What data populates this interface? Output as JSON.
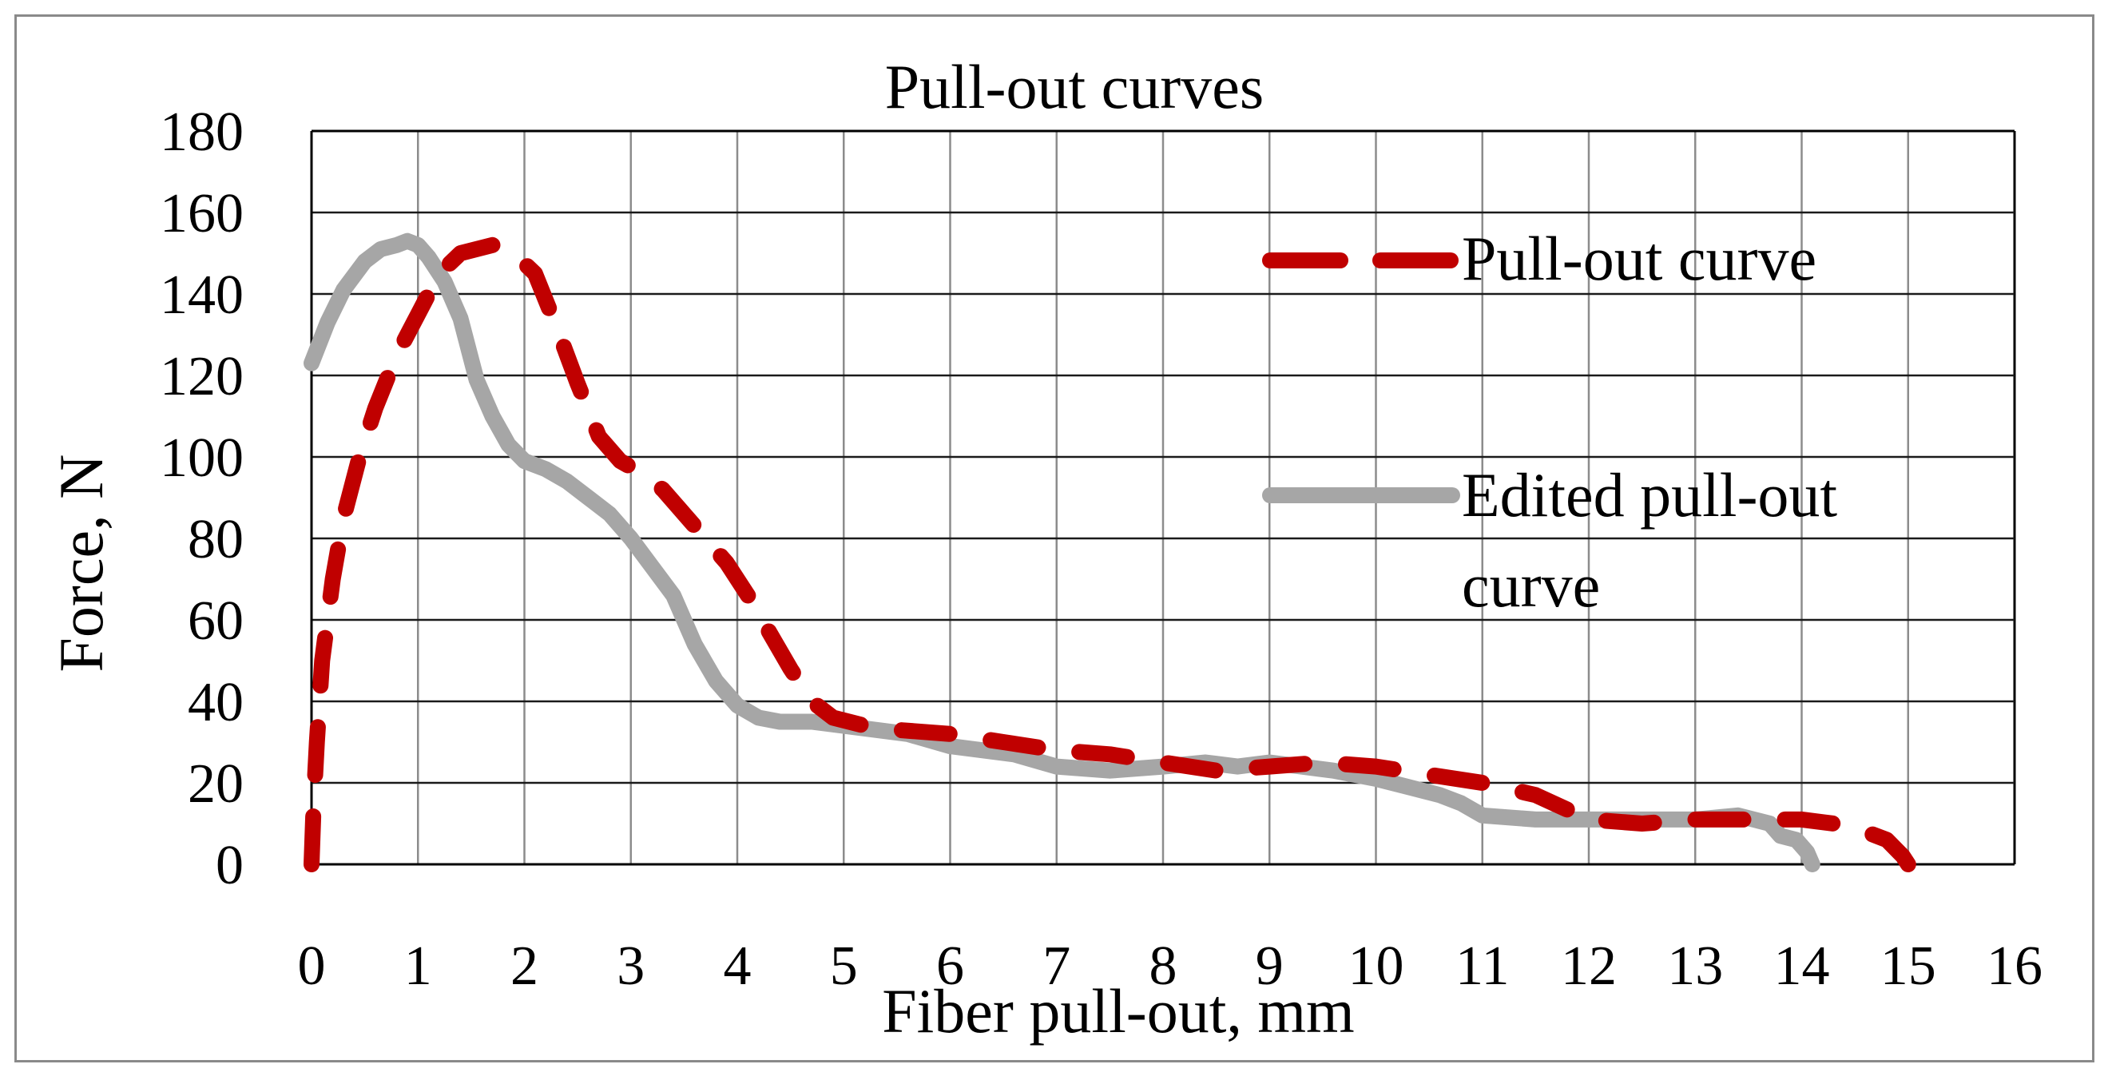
{
  "chart_data": {
    "type": "line",
    "title": "Pull-out curves",
    "xlabel": "Fiber pull-out, mm",
    "ylabel": "Force, N",
    "xlim": [
      0,
      16
    ],
    "ylim": [
      0,
      180
    ],
    "x_ticks": [
      0,
      1,
      2,
      3,
      4,
      5,
      6,
      7,
      8,
      9,
      10,
      11,
      12,
      13,
      14,
      15,
      16
    ],
    "y_ticks": [
      0,
      20,
      40,
      60,
      80,
      100,
      120,
      140,
      160,
      180
    ],
    "grid": true,
    "legend_position": "top-right",
    "series": [
      {
        "name": "Pull-out curve",
        "style": "dashed",
        "color": "#c00000",
        "points": [
          [
            0,
            0
          ],
          [
            0.02,
            15
          ],
          [
            0.05,
            30
          ],
          [
            0.1,
            50
          ],
          [
            0.2,
            70
          ],
          [
            0.3,
            85
          ],
          [
            0.45,
            100
          ],
          [
            0.6,
            112
          ],
          [
            0.8,
            125
          ],
          [
            1.0,
            135
          ],
          [
            1.2,
            145
          ],
          [
            1.4,
            150
          ],
          [
            1.7,
            152
          ],
          [
            1.9,
            150
          ],
          [
            2.1,
            145
          ],
          [
            2.3,
            132
          ],
          [
            2.5,
            118
          ],
          [
            2.7,
            105
          ],
          [
            2.9,
            99
          ],
          [
            3.1,
            96
          ],
          [
            3.3,
            92
          ],
          [
            3.5,
            86
          ],
          [
            3.7,
            80
          ],
          [
            3.9,
            74
          ],
          [
            4.1,
            66
          ],
          [
            4.3,
            57
          ],
          [
            4.5,
            48
          ],
          [
            4.7,
            40
          ],
          [
            4.9,
            36
          ],
          [
            5.2,
            34
          ],
          [
            5.5,
            33
          ],
          [
            6.0,
            32
          ],
          [
            6.5,
            30
          ],
          [
            7.0,
            28
          ],
          [
            7.5,
            27
          ],
          [
            8.0,
            25
          ],
          [
            8.5,
            23
          ],
          [
            9.0,
            24
          ],
          [
            9.5,
            25
          ],
          [
            10.0,
            24
          ],
          [
            10.5,
            22
          ],
          [
            11.0,
            20
          ],
          [
            11.5,
            17
          ],
          [
            12.0,
            11
          ],
          [
            12.5,
            10
          ],
          [
            13.0,
            11
          ],
          [
            13.5,
            11
          ],
          [
            14.0,
            11
          ],
          [
            14.3,
            10
          ],
          [
            14.6,
            8
          ],
          [
            14.8,
            6
          ],
          [
            14.95,
            2
          ],
          [
            15.0,
            0
          ]
        ]
      },
      {
        "name": "Edited pull-out curve",
        "style": "solid",
        "color": "#a6a6a6",
        "points": [
          [
            0,
            123
          ],
          [
            0.15,
            133
          ],
          [
            0.3,
            141
          ],
          [
            0.5,
            148
          ],
          [
            0.65,
            151
          ],
          [
            0.8,
            152
          ],
          [
            0.9,
            153
          ],
          [
            1.0,
            152
          ],
          [
            1.1,
            149
          ],
          [
            1.25,
            143
          ],
          [
            1.4,
            134
          ],
          [
            1.55,
            119
          ],
          [
            1.7,
            110
          ],
          [
            1.85,
            103
          ],
          [
            2.0,
            99
          ],
          [
            2.2,
            97
          ],
          [
            2.4,
            94
          ],
          [
            2.6,
            90
          ],
          [
            2.8,
            86
          ],
          [
            3.0,
            80
          ],
          [
            3.2,
            73
          ],
          [
            3.4,
            66
          ],
          [
            3.6,
            54
          ],
          [
            3.8,
            45
          ],
          [
            4.0,
            39
          ],
          [
            4.2,
            36
          ],
          [
            4.4,
            35
          ],
          [
            4.7,
            35
          ],
          [
            5.0,
            34
          ],
          [
            5.3,
            33
          ],
          [
            5.6,
            32
          ],
          [
            6.0,
            29
          ],
          [
            6.3,
            28
          ],
          [
            6.6,
            27
          ],
          [
            7.0,
            24
          ],
          [
            7.5,
            23
          ],
          [
            8.0,
            24
          ],
          [
            8.4,
            25
          ],
          [
            8.7,
            24
          ],
          [
            9.0,
            25
          ],
          [
            9.3,
            24
          ],
          [
            9.6,
            23
          ],
          [
            10.0,
            21
          ],
          [
            10.3,
            19
          ],
          [
            10.6,
            17
          ],
          [
            10.8,
            15
          ],
          [
            11.0,
            12
          ],
          [
            11.5,
            11
          ],
          [
            12.0,
            11
          ],
          [
            12.5,
            11
          ],
          [
            13.0,
            11
          ],
          [
            13.4,
            12
          ],
          [
            13.7,
            10
          ],
          [
            13.8,
            7
          ],
          [
            13.95,
            6
          ],
          [
            14.05,
            3
          ],
          [
            14.1,
            0
          ]
        ]
      }
    ]
  }
}
